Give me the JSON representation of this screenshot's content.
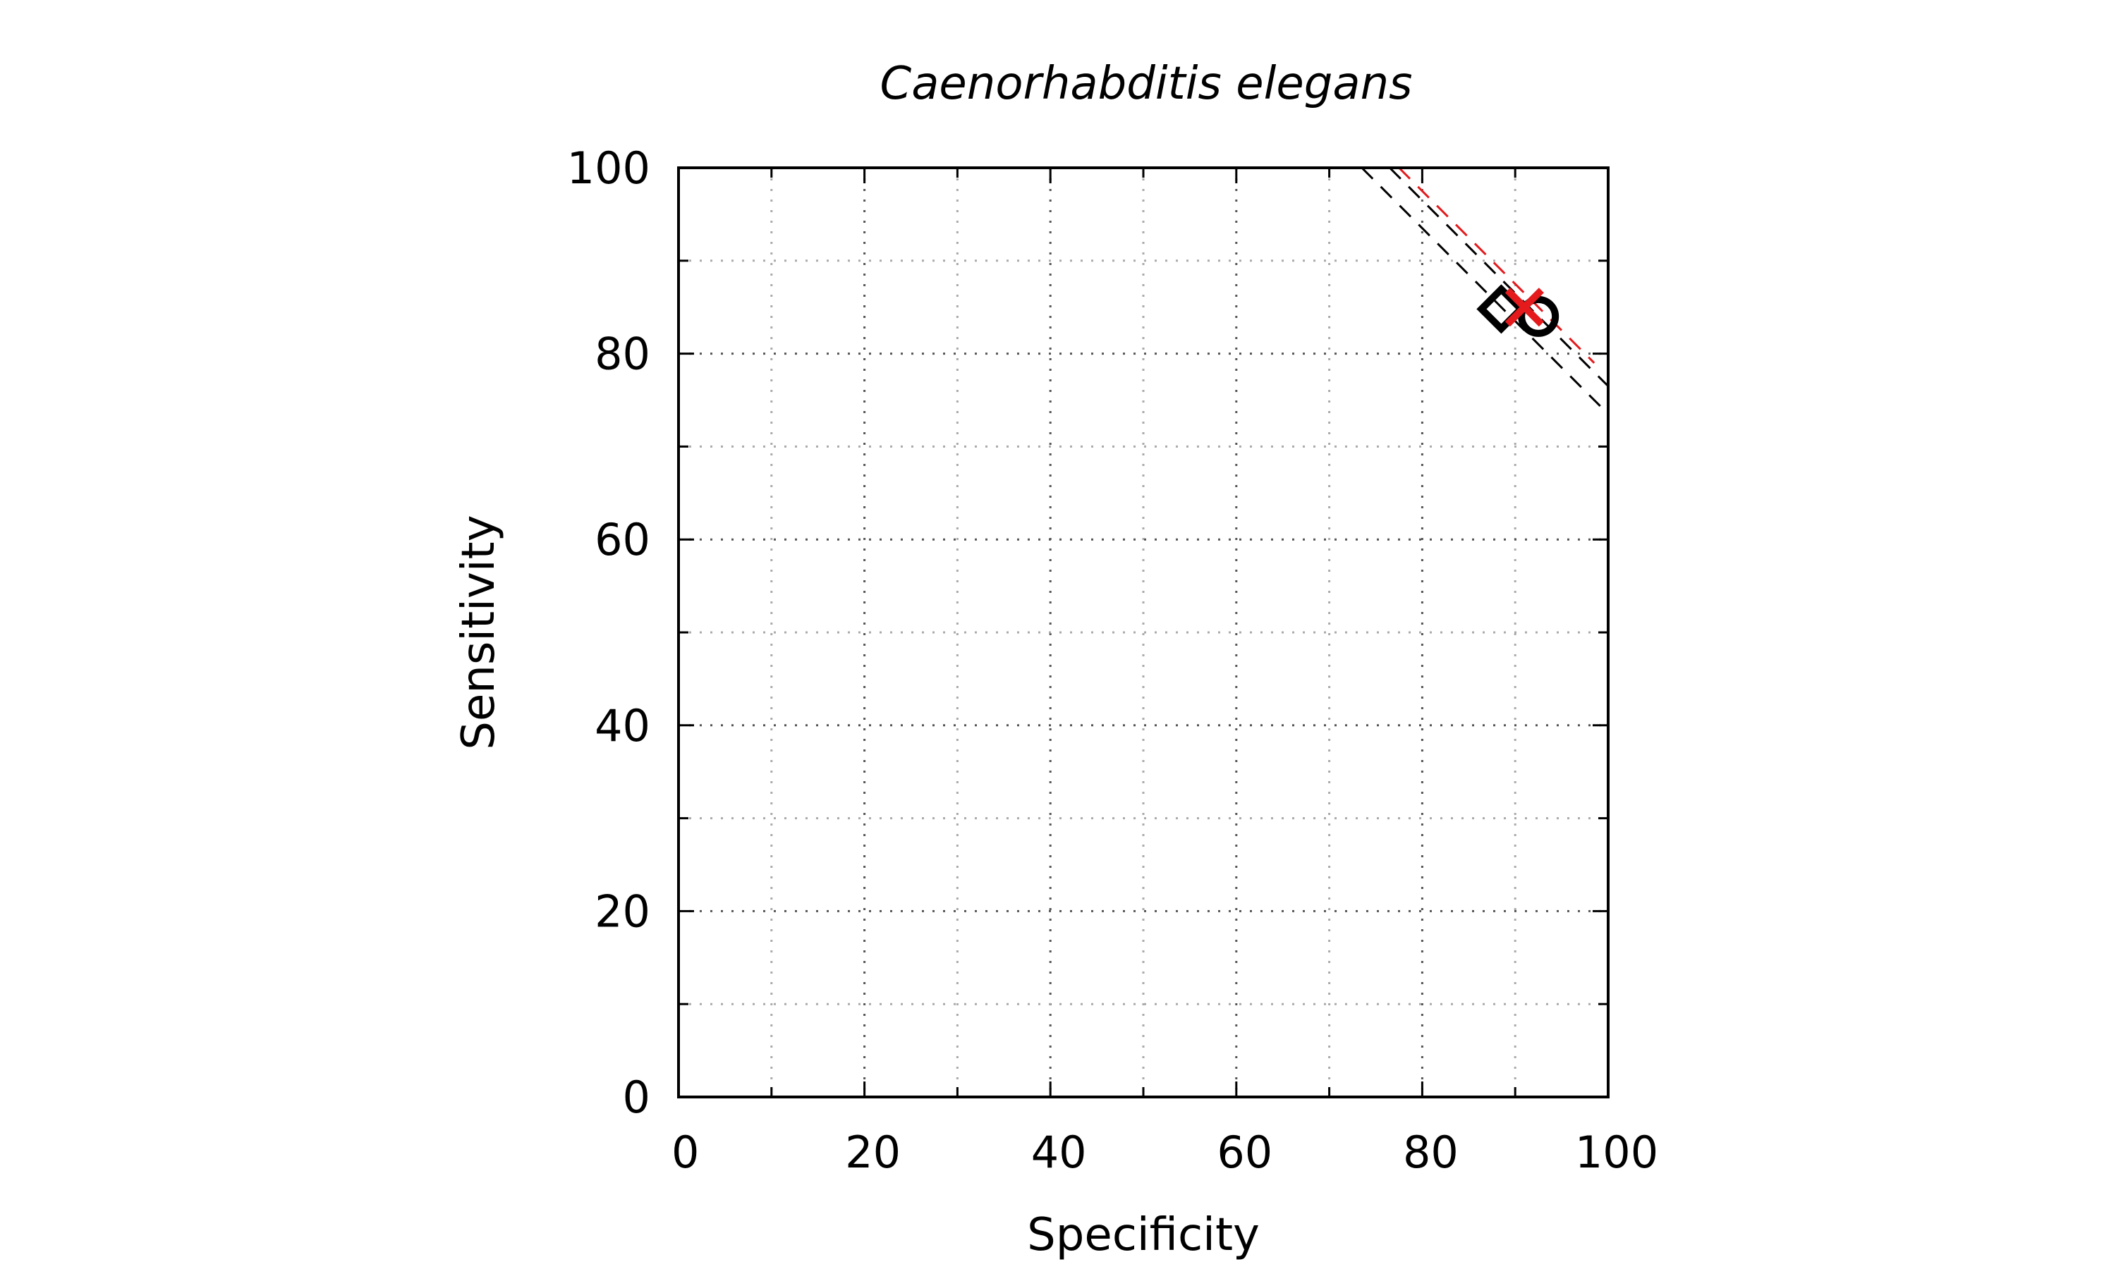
{
  "chart_data": {
    "type": "scatter",
    "title": "Caenorhabditis elegans",
    "xlabel": "Specificity",
    "ylabel": "Sensitivity",
    "xlim": [
      0,
      100
    ],
    "ylim": [
      0,
      100
    ],
    "x_ticks": [
      0,
      20,
      40,
      60,
      80,
      100
    ],
    "y_ticks": [
      0,
      20,
      40,
      60,
      80,
      100
    ],
    "minor_tick_step": 10,
    "grid": true,
    "points": [
      {
        "x": 88.5,
        "y": 84.8,
        "marker": "diamond",
        "color": "#000000"
      },
      {
        "x": 92.5,
        "y": 84.0,
        "marker": "circle",
        "color": "#000000"
      },
      {
        "x": 91.0,
        "y": 85.0,
        "marker": "x",
        "color": "#e41a1c"
      }
    ],
    "reference_lines": [
      {
        "x1": 73.5,
        "y1": 100,
        "x2": 100,
        "y2": 73.5,
        "color": "#000000"
      },
      {
        "x1": 76.5,
        "y1": 100,
        "x2": 100,
        "y2": 76.5,
        "color": "#000000"
      },
      {
        "x1": 77.5,
        "y1": 100,
        "x2": 98.5,
        "y2": 79.0,
        "color": "#e41a1c"
      }
    ]
  }
}
